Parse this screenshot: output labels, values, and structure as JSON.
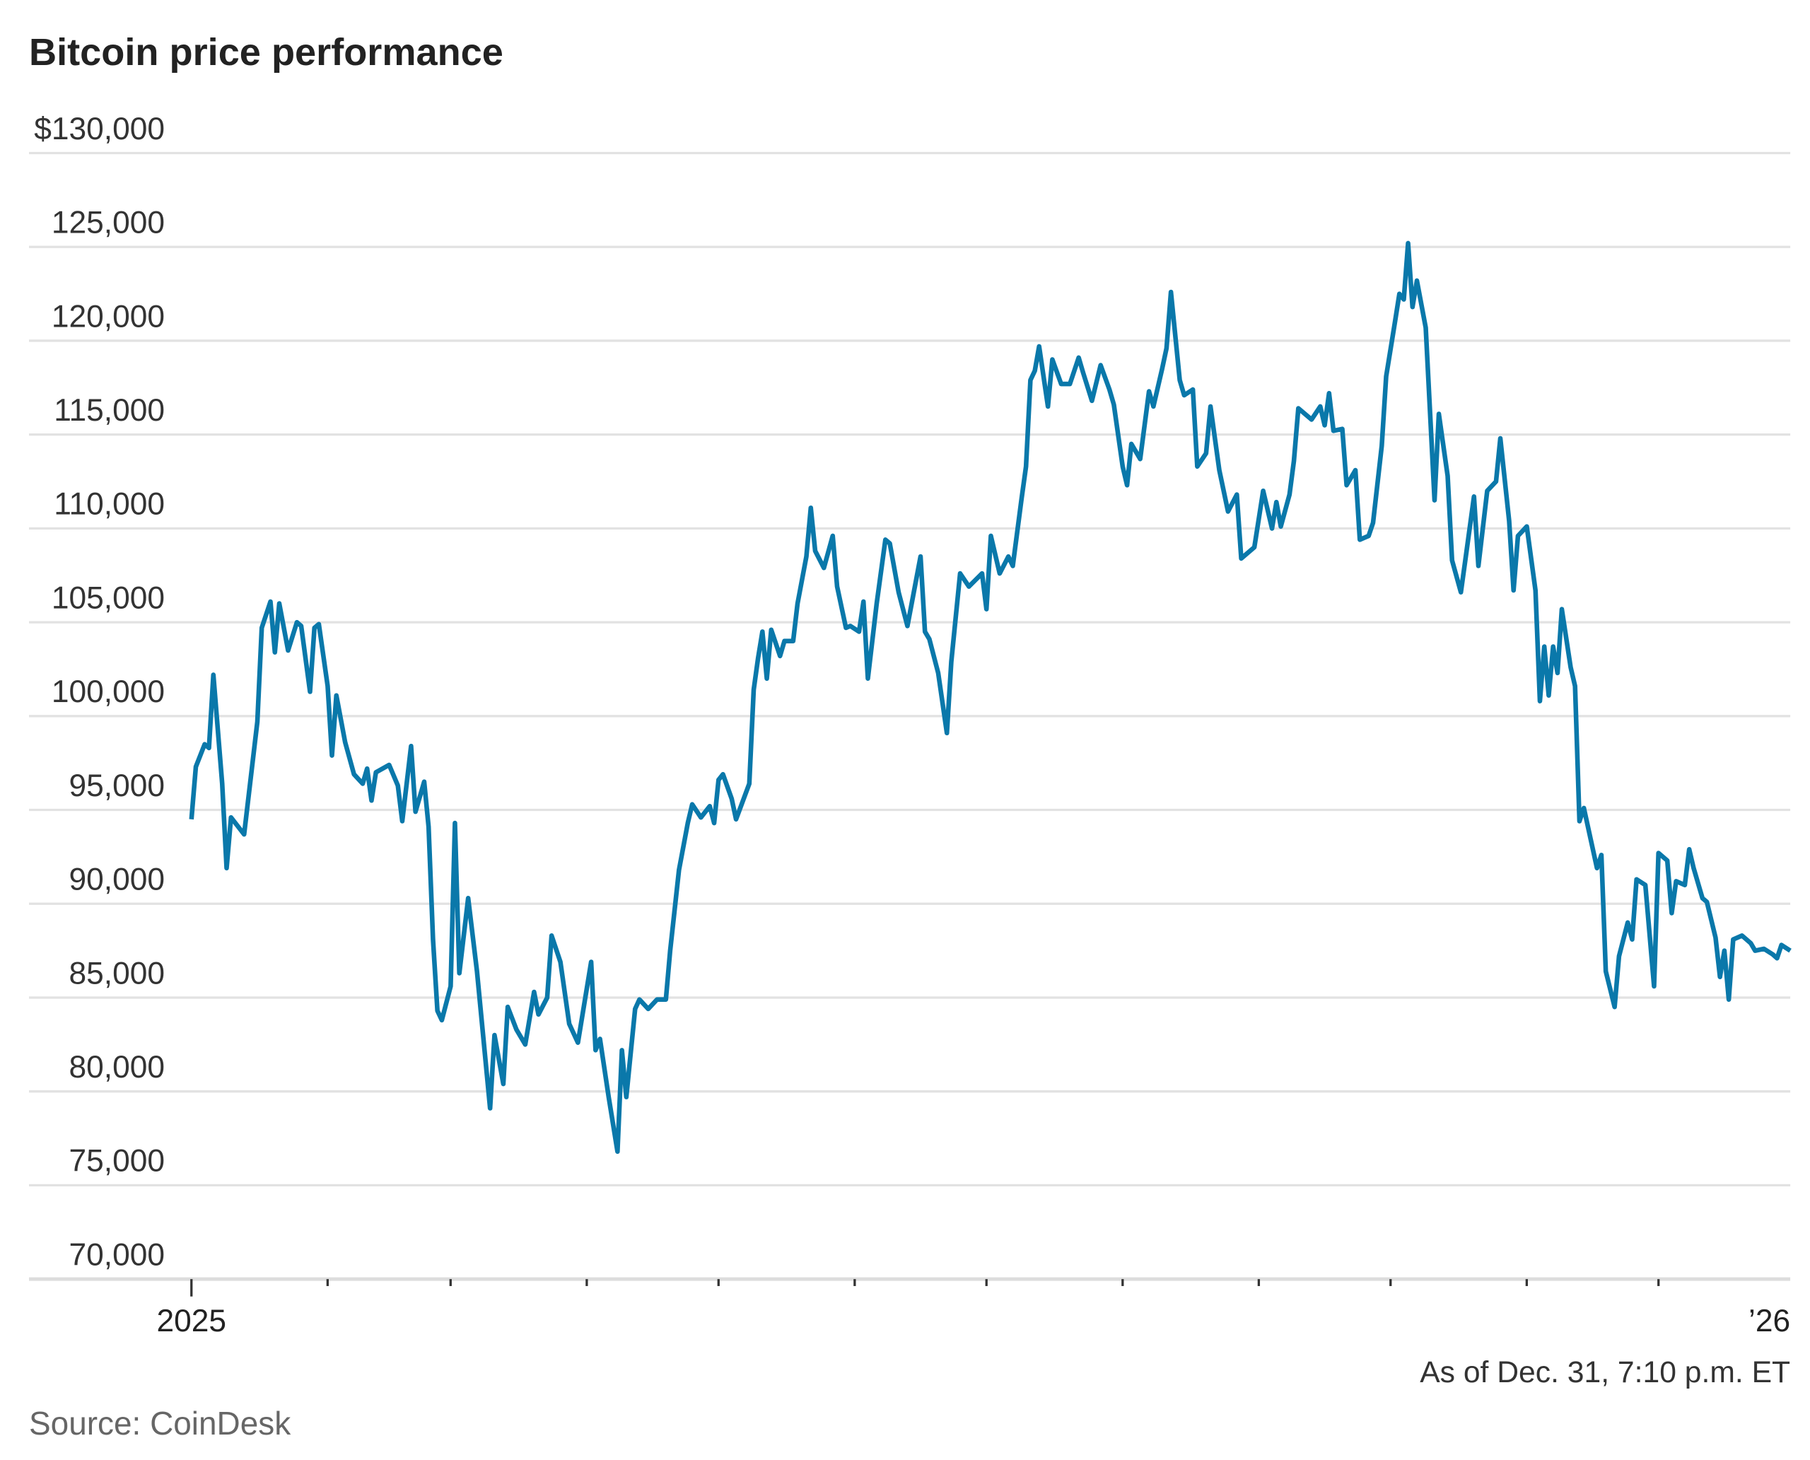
{
  "chart_data": {
    "type": "line",
    "title": "Bitcoin price performance",
    "xlabel": "",
    "ylabel": "",
    "ylim": [
      70000,
      130000
    ],
    "xlim": [
      "2025-01-01",
      "2025-12-31"
    ],
    "grid": true,
    "line_color": "#0a78aa",
    "y_ticks": [
      {
        "value": 130000,
        "label": "$130,000"
      },
      {
        "value": 125000,
        "label": "125,000"
      },
      {
        "value": 120000,
        "label": "120,000"
      },
      {
        "value": 115000,
        "label": "115,000"
      },
      {
        "value": 110000,
        "label": "110,000"
      },
      {
        "value": 105000,
        "label": "105,000"
      },
      {
        "value": 100000,
        "label": "100,000"
      },
      {
        "value": 95000,
        "label": "95,000"
      },
      {
        "value": 90000,
        "label": "90,000"
      },
      {
        "value": 85000,
        "label": "85,000"
      },
      {
        "value": 80000,
        "label": "80,000"
      },
      {
        "value": 75000,
        "label": "75,000"
      },
      {
        "value": 70000,
        "label": "70,000"
      }
    ],
    "x_ticks": [
      {
        "date": "2025-01-01",
        "label": "2025"
      },
      {
        "date": "2025-02-01",
        "label": ""
      },
      {
        "date": "2025-03-01",
        "label": ""
      },
      {
        "date": "2025-04-01",
        "label": ""
      },
      {
        "date": "2025-05-01",
        "label": ""
      },
      {
        "date": "2025-06-01",
        "label": ""
      },
      {
        "date": "2025-07-01",
        "label": ""
      },
      {
        "date": "2025-08-01",
        "label": ""
      },
      {
        "date": "2025-09-01",
        "label": ""
      },
      {
        "date": "2025-10-01",
        "label": ""
      },
      {
        "date": "2025-11-01",
        "label": ""
      },
      {
        "date": "2025-12-01",
        "label": ""
      },
      {
        "date": "2025-12-31",
        "label": "’26"
      }
    ],
    "series": [
      {
        "values": [
          [
            "2025-01-01",
            94500
          ],
          [
            "2025-01-02",
            97300
          ],
          [
            "2025-01-04",
            98500
          ],
          [
            "2025-01-05",
            98300
          ],
          [
            "2025-01-06",
            102200
          ],
          [
            "2025-01-08",
            96400
          ],
          [
            "2025-01-09",
            91900
          ],
          [
            "2025-01-10",
            94600
          ],
          [
            "2025-01-13",
            93700
          ],
          [
            "2025-01-16",
            99700
          ],
          [
            "2025-01-17",
            104700
          ],
          [
            "2025-01-19",
            106100
          ],
          [
            "2025-01-20",
            103400
          ],
          [
            "2025-01-21",
            106000
          ],
          [
            "2025-01-23",
            103500
          ],
          [
            "2025-01-25",
            105000
          ],
          [
            "2025-01-26",
            104800
          ],
          [
            "2025-01-28",
            101300
          ],
          [
            "2025-01-29",
            104700
          ],
          [
            "2025-01-30",
            104900
          ],
          [
            "2025-02-01",
            101600
          ],
          [
            "2025-02-02",
            97900
          ],
          [
            "2025-02-03",
            101100
          ],
          [
            "2025-02-05",
            98600
          ],
          [
            "2025-02-07",
            96900
          ],
          [
            "2025-02-09",
            96400
          ],
          [
            "2025-02-10",
            97200
          ],
          [
            "2025-02-11",
            95500
          ],
          [
            "2025-02-12",
            97000
          ],
          [
            "2025-02-15",
            97400
          ],
          [
            "2025-02-17",
            96300
          ],
          [
            "2025-02-18",
            94400
          ],
          [
            "2025-02-20",
            98400
          ],
          [
            "2025-02-21",
            94900
          ],
          [
            "2025-02-23",
            96500
          ],
          [
            "2025-02-24",
            94100
          ],
          [
            "2025-02-25",
            88100
          ],
          [
            "2025-02-26",
            84300
          ],
          [
            "2025-02-27",
            83800
          ],
          [
            "2025-03-01",
            85600
          ],
          [
            "2025-03-02",
            94300
          ],
          [
            "2025-03-03",
            86300
          ],
          [
            "2025-03-05",
            90300
          ],
          [
            "2025-03-07",
            86400
          ],
          [
            "2025-03-10",
            79100
          ],
          [
            "2025-03-11",
            83000
          ],
          [
            "2025-03-13",
            80400
          ],
          [
            "2025-03-14",
            84500
          ],
          [
            "2025-03-16",
            83300
          ],
          [
            "2025-03-18",
            82500
          ],
          [
            "2025-03-20",
            85300
          ],
          [
            "2025-03-21",
            84100
          ],
          [
            "2025-03-23",
            85000
          ],
          [
            "2025-03-24",
            88300
          ],
          [
            "2025-03-26",
            86900
          ],
          [
            "2025-03-28",
            83600
          ],
          [
            "2025-03-30",
            82600
          ],
          [
            "2025-04-02",
            86900
          ],
          [
            "2025-04-03",
            82200
          ],
          [
            "2025-04-04",
            82800
          ],
          [
            "2025-04-06",
            79700
          ],
          [
            "2025-04-08",
            76800
          ],
          [
            "2025-04-09",
            82200
          ],
          [
            "2025-04-10",
            79700
          ],
          [
            "2025-04-12",
            84400
          ],
          [
            "2025-04-13",
            84900
          ],
          [
            "2025-04-15",
            84400
          ],
          [
            "2025-04-17",
            84900
          ],
          [
            "2025-04-19",
            84900
          ],
          [
            "2025-04-20",
            87500
          ],
          [
            "2025-04-22",
            91800
          ],
          [
            "2025-04-24",
            94300
          ],
          [
            "2025-04-25",
            95300
          ],
          [
            "2025-04-27",
            94600
          ],
          [
            "2025-04-29",
            95200
          ],
          [
            "2025-04-30",
            94300
          ],
          [
            "2025-05-01",
            96600
          ],
          [
            "2025-05-02",
            96900
          ],
          [
            "2025-05-04",
            95600
          ],
          [
            "2025-05-05",
            94500
          ],
          [
            "2025-05-08",
            96400
          ],
          [
            "2025-05-09",
            101400
          ],
          [
            "2025-05-10",
            103100
          ],
          [
            "2025-05-11",
            104500
          ],
          [
            "2025-05-12",
            102000
          ],
          [
            "2025-05-13",
            104600
          ],
          [
            "2025-05-15",
            103200
          ],
          [
            "2025-05-16",
            104000
          ],
          [
            "2025-05-18",
            104000
          ],
          [
            "2025-05-19",
            106000
          ],
          [
            "2025-05-21",
            108500
          ],
          [
            "2025-05-22",
            111100
          ],
          [
            "2025-05-23",
            108800
          ],
          [
            "2025-05-25",
            107900
          ],
          [
            "2025-05-27",
            109600
          ],
          [
            "2025-05-28",
            106900
          ],
          [
            "2025-05-30",
            104700
          ],
          [
            "2025-05-31",
            104800
          ],
          [
            "2025-06-02",
            104500
          ],
          [
            "2025-06-03",
            106100
          ],
          [
            "2025-06-04",
            102000
          ],
          [
            "2025-06-06",
            106000
          ],
          [
            "2025-06-08",
            109400
          ],
          [
            "2025-06-09",
            109200
          ],
          [
            "2025-06-11",
            106600
          ],
          [
            "2025-06-13",
            104800
          ],
          [
            "2025-06-16",
            108500
          ],
          [
            "2025-06-17",
            104500
          ],
          [
            "2025-06-18",
            104100
          ],
          [
            "2025-06-20",
            102300
          ],
          [
            "2025-06-22",
            99100
          ],
          [
            "2025-06-23",
            102900
          ],
          [
            "2025-06-25",
            107600
          ],
          [
            "2025-06-27",
            106900
          ],
          [
            "2025-06-30",
            107600
          ],
          [
            "2025-07-01",
            105700
          ],
          [
            "2025-07-02",
            109600
          ],
          [
            "2025-07-04",
            107600
          ],
          [
            "2025-07-06",
            108500
          ],
          [
            "2025-07-07",
            108000
          ],
          [
            "2025-07-09",
            111600
          ],
          [
            "2025-07-10",
            113300
          ],
          [
            "2025-07-11",
            117900
          ],
          [
            "2025-07-12",
            118400
          ],
          [
            "2025-07-13",
            119700
          ],
          [
            "2025-07-15",
            116500
          ],
          [
            "2025-07-16",
            119000
          ],
          [
            "2025-07-18",
            117700
          ],
          [
            "2025-07-20",
            117700
          ],
          [
            "2025-07-22",
            119100
          ],
          [
            "2025-07-23",
            118300
          ],
          [
            "2025-07-25",
            116800
          ],
          [
            "2025-07-27",
            118700
          ],
          [
            "2025-07-29",
            117400
          ],
          [
            "2025-07-30",
            116600
          ],
          [
            "2025-08-01",
            113300
          ],
          [
            "2025-08-02",
            112300
          ],
          [
            "2025-08-03",
            114500
          ],
          [
            "2025-08-05",
            113700
          ],
          [
            "2025-08-07",
            117300
          ],
          [
            "2025-08-08",
            116500
          ],
          [
            "2025-08-10",
            118500
          ],
          [
            "2025-08-11",
            119600
          ],
          [
            "2025-08-12",
            122600
          ],
          [
            "2025-08-14",
            117900
          ],
          [
            "2025-08-15",
            117100
          ],
          [
            "2025-08-17",
            117400
          ],
          [
            "2025-08-18",
            113300
          ],
          [
            "2025-08-20",
            114000
          ],
          [
            "2025-08-21",
            116500
          ],
          [
            "2025-08-23",
            113100
          ],
          [
            "2025-08-25",
            110900
          ],
          [
            "2025-08-27",
            111800
          ],
          [
            "2025-08-28",
            108400
          ],
          [
            "2025-08-31",
            109000
          ],
          [
            "2025-09-02",
            112000
          ],
          [
            "2025-09-04",
            110000
          ],
          [
            "2025-09-05",
            111400
          ],
          [
            "2025-09-06",
            110100
          ],
          [
            "2025-09-08",
            111800
          ],
          [
            "2025-09-09",
            113600
          ],
          [
            "2025-09-10",
            116400
          ],
          [
            "2025-09-13",
            115800
          ],
          [
            "2025-09-15",
            116500
          ],
          [
            "2025-09-16",
            115500
          ],
          [
            "2025-09-17",
            117200
          ],
          [
            "2025-09-18",
            115200
          ],
          [
            "2025-09-20",
            115300
          ],
          [
            "2025-09-21",
            112300
          ],
          [
            "2025-09-23",
            113100
          ],
          [
            "2025-09-24",
            109400
          ],
          [
            "2025-09-26",
            109600
          ],
          [
            "2025-09-27",
            110300
          ],
          [
            "2025-09-29",
            114400
          ],
          [
            "2025-09-30",
            118100
          ],
          [
            "2025-10-02",
            121000
          ],
          [
            "2025-10-03",
            122500
          ],
          [
            "2025-10-04",
            122200
          ],
          [
            "2025-10-05",
            125200
          ],
          [
            "2025-10-06",
            121800
          ],
          [
            "2025-10-07",
            123200
          ],
          [
            "2025-10-09",
            120700
          ],
          [
            "2025-10-11",
            111500
          ],
          [
            "2025-10-12",
            116100
          ],
          [
            "2025-10-14",
            112800
          ],
          [
            "2025-10-15",
            108300
          ],
          [
            "2025-10-17",
            106600
          ],
          [
            "2025-10-18",
            108300
          ],
          [
            "2025-10-20",
            111700
          ],
          [
            "2025-10-21",
            108000
          ],
          [
            "2025-10-23",
            112000
          ],
          [
            "2025-10-25",
            112500
          ],
          [
            "2025-10-26",
            114800
          ],
          [
            "2025-10-28",
            110400
          ],
          [
            "2025-10-29",
            106700
          ],
          [
            "2025-10-30",
            109600
          ],
          [
            "2025-11-01",
            110100
          ],
          [
            "2025-11-03",
            106700
          ],
          [
            "2025-11-04",
            100800
          ],
          [
            "2025-11-05",
            103700
          ],
          [
            "2025-11-06",
            101100
          ],
          [
            "2025-11-07",
            103700
          ],
          [
            "2025-11-08",
            102300
          ],
          [
            "2025-11-09",
            105700
          ],
          [
            "2025-11-11",
            102600
          ],
          [
            "2025-11-12",
            101600
          ],
          [
            "2025-11-13",
            94400
          ],
          [
            "2025-11-14",
            95100
          ],
          [
            "2025-11-17",
            91900
          ],
          [
            "2025-11-18",
            92600
          ],
          [
            "2025-11-19",
            86400
          ],
          [
            "2025-11-21",
            84500
          ],
          [
            "2025-11-22",
            87200
          ],
          [
            "2025-11-24",
            89000
          ],
          [
            "2025-11-25",
            88100
          ],
          [
            "2025-11-26",
            91300
          ],
          [
            "2025-11-28",
            91000
          ],
          [
            "2025-11-30",
            85600
          ],
          [
            "2025-12-01",
            92700
          ],
          [
            "2025-12-03",
            92300
          ],
          [
            "2025-12-04",
            89500
          ],
          [
            "2025-12-05",
            91200
          ],
          [
            "2025-12-07",
            91000
          ],
          [
            "2025-12-08",
            92900
          ],
          [
            "2025-12-09",
            91900
          ],
          [
            "2025-12-11",
            90300
          ],
          [
            "2025-12-12",
            90100
          ],
          [
            "2025-12-14",
            88200
          ],
          [
            "2025-12-15",
            86100
          ],
          [
            "2025-12-16",
            87500
          ],
          [
            "2025-12-17",
            84900
          ],
          [
            "2025-12-18",
            88100
          ],
          [
            "2025-12-20",
            88300
          ],
          [
            "2025-12-22",
            87900
          ],
          [
            "2025-12-23",
            87500
          ],
          [
            "2025-12-25",
            87600
          ],
          [
            "2025-12-27",
            87300
          ],
          [
            "2025-12-28",
            87100
          ],
          [
            "2025-12-29",
            87800
          ],
          [
            "2025-12-31",
            87500
          ]
        ]
      }
    ],
    "annotation": "As of Dec. 31, 7:10 p.m. ET",
    "source": "Source: CoinDesk"
  }
}
